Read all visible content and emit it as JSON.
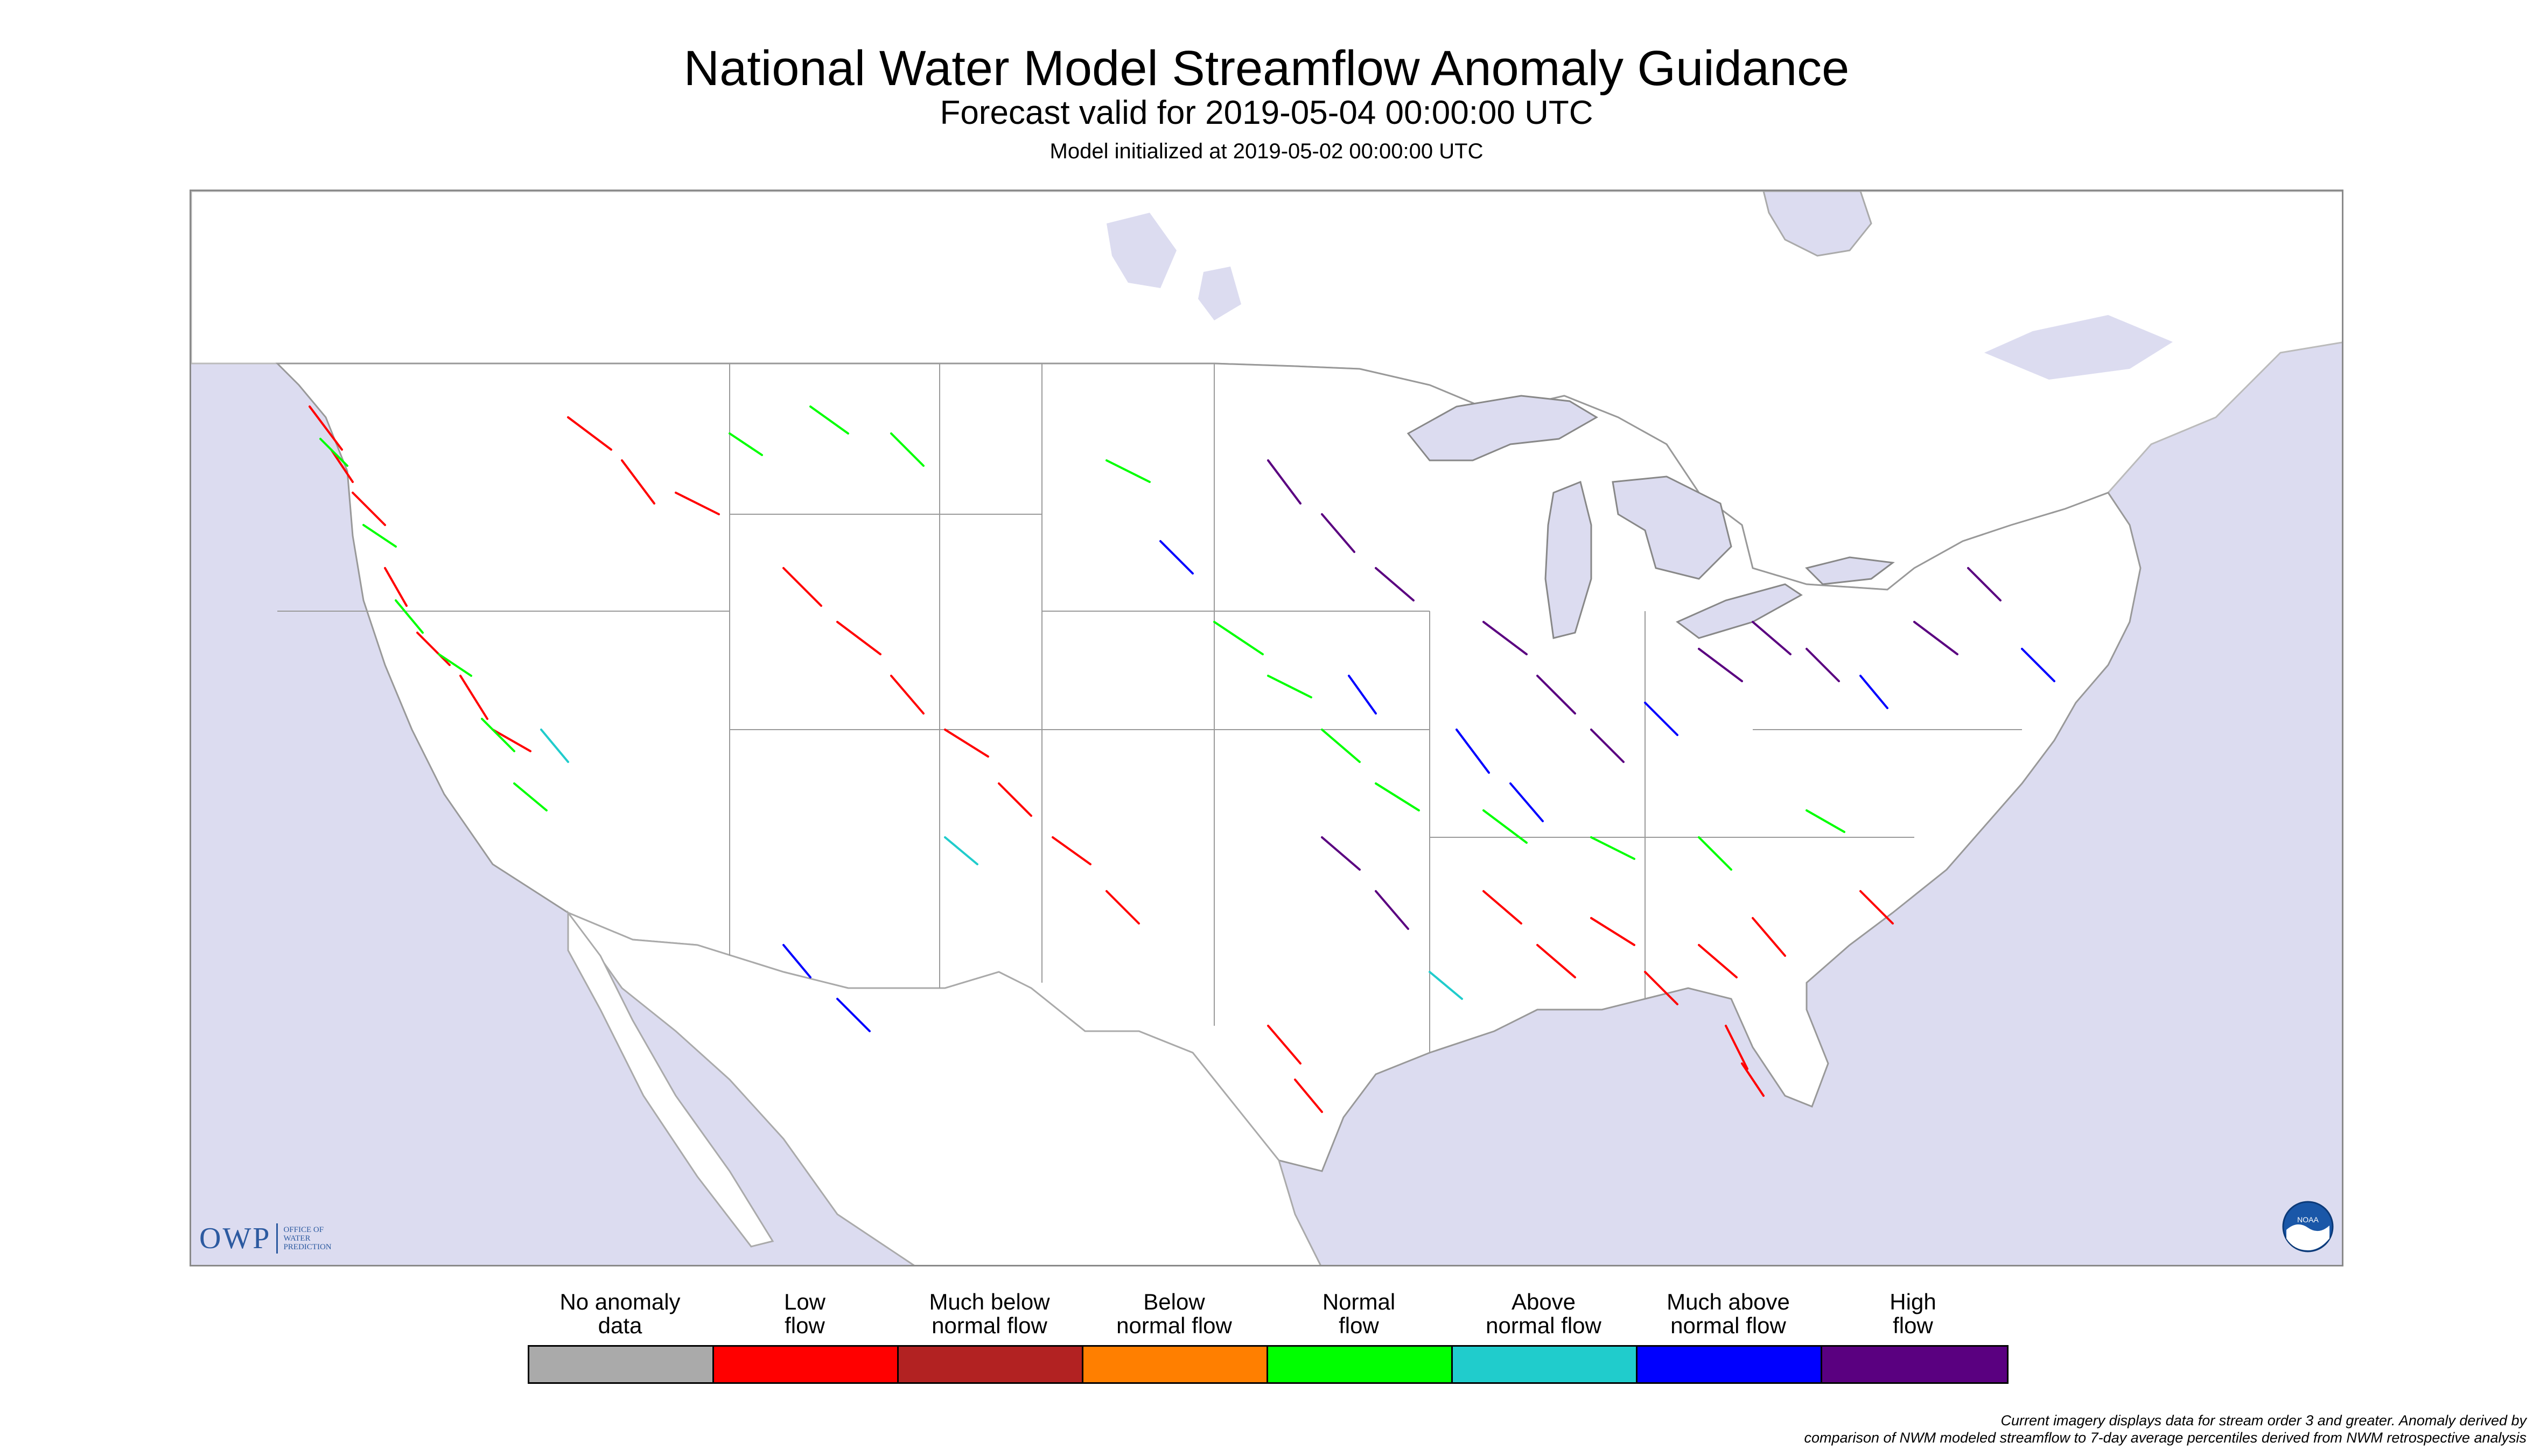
{
  "header": {
    "title": "National Water Model Streamflow Anomaly Guidance",
    "subtitle": "Forecast valid for 2019-05-04 00:00:00 UTC",
    "init_line": "Model initialized at 2019-05-02 00:00:00 UTC"
  },
  "logo": {
    "owp_big": "OWP",
    "owp_small_1": "Office of",
    "owp_small_2": "Water",
    "owp_small_3": "Prediction",
    "noaa_text": "NOAA"
  },
  "legend": {
    "items": [
      {
        "line1": "No anomaly",
        "line2": "data",
        "color": "#aaaaaa"
      },
      {
        "line1": "Low",
        "line2": "flow",
        "color": "#ff0000"
      },
      {
        "line1": "Much below",
        "line2": "normal flow",
        "color": "#b22222"
      },
      {
        "line1": "Below",
        "line2": "normal flow",
        "color": "#ff7f00"
      },
      {
        "line1": "Normal",
        "line2": "flow",
        "color": "#00ff00"
      },
      {
        "line1": "Above",
        "line2": "normal flow",
        "color": "#20cccc"
      },
      {
        "line1": "Much above",
        "line2": "normal flow",
        "color": "#0000ff"
      },
      {
        "line1": "High",
        "line2": "flow",
        "color": "#5a0080"
      }
    ]
  },
  "footnote": {
    "line1": "Current imagery displays data for stream order 3 and greater. Anomaly derived by",
    "line2": "comparison of NWM modeled streamflow to 7-day average percentiles derived from NWM retrospective analysis"
  },
  "colors": {
    "water": "#dcdcf0",
    "land": "#ffffff",
    "border": "#8a8a8a"
  }
}
